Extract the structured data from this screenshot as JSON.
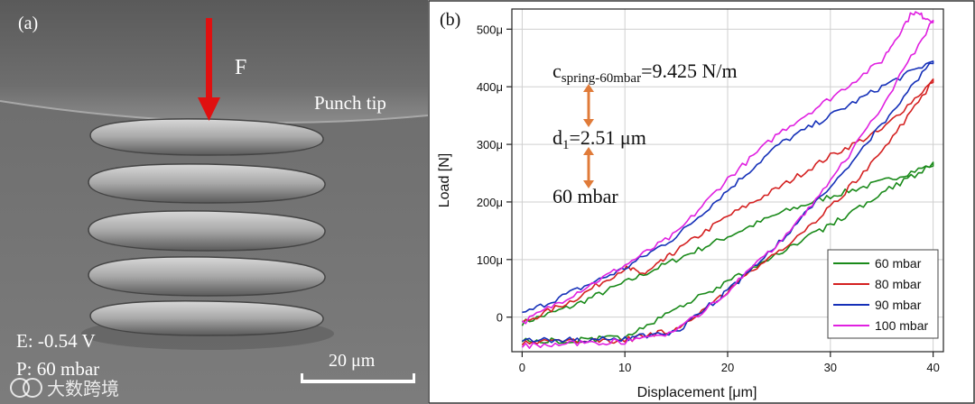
{
  "panel_a": {
    "label": "(a)",
    "force_label": "F",
    "tip_label": "Punch tip",
    "potential": "E: -0.54 V",
    "pressure": "P: 60 mbar",
    "scale_bar": "20 μm"
  },
  "panel_b": {
    "label": "(b)",
    "annotations": {
      "spring_main": "c",
      "spring_sub": "spring-60mbar",
      "spring_value": "=9.425 N/m",
      "d_main": "d",
      "d_sub": "1",
      "d_value": "=2.51 μm",
      "pressure": "60 mbar"
    },
    "arrow_color": "#e07b39"
  },
  "watermark": "大数跨境",
  "chart_data": {
    "type": "line",
    "title": "",
    "xlabel": "Displacement [μm]",
    "ylabel": "Load [N]",
    "xlim": [
      -1,
      41
    ],
    "ylim": [
      -60,
      535
    ],
    "xticks": [
      0,
      10,
      20,
      30,
      40
    ],
    "xtick_labels": [
      "0",
      "10",
      "20",
      "30",
      "40"
    ],
    "yticks": [
      0,
      100,
      200,
      300,
      400,
      500
    ],
    "ytick_labels": [
      "0",
      "100μ",
      "200μ",
      "300μ",
      "400μ",
      "500μ"
    ],
    "grid": true,
    "legend_position": "bottom-right",
    "series": [
      {
        "name": "60  mbar",
        "color": "#1a8a1a",
        "loading": [
          [
            0,
            -10
          ],
          [
            5,
            20
          ],
          [
            10,
            60
          ],
          [
            15,
            100
          ],
          [
            20,
            140
          ],
          [
            25,
            180
          ],
          [
            30,
            210
          ],
          [
            35,
            235
          ],
          [
            40,
            265
          ]
        ],
        "unloading": [
          [
            40,
            265
          ],
          [
            35,
            215
          ],
          [
            30,
            160
          ],
          [
            25,
            110
          ],
          [
            20,
            60
          ],
          [
            15,
            15
          ],
          [
            10,
            -35
          ],
          [
            5,
            -40
          ],
          [
            0,
            -42
          ]
        ]
      },
      {
        "name": "80  mbar",
        "color": "#d42020",
        "loading": [
          [
            0,
            -10
          ],
          [
            5,
            30
          ],
          [
            10,
            85
          ],
          [
            12,
            75
          ],
          [
            15,
            115
          ],
          [
            20,
            175
          ],
          [
            25,
            225
          ],
          [
            30,
            280
          ],
          [
            35,
            325
          ],
          [
            40,
            410
          ]
        ],
        "unloading": [
          [
            40,
            410
          ],
          [
            35,
            285
          ],
          [
            30,
            190
          ],
          [
            25,
            115
          ],
          [
            20,
            45
          ],
          [
            15,
            -20
          ],
          [
            10,
            -40
          ],
          [
            5,
            -42
          ],
          [
            0,
            -45
          ]
        ]
      },
      {
        "name": "90  mbar",
        "color": "#1530b8",
        "loading": [
          [
            0,
            5
          ],
          [
            5,
            45
          ],
          [
            10,
            85
          ],
          [
            15,
            140
          ],
          [
            20,
            220
          ],
          [
            25,
            300
          ],
          [
            30,
            350
          ],
          [
            35,
            400
          ],
          [
            40,
            445
          ]
        ],
        "unloading": [
          [
            40,
            445
          ],
          [
            35,
            335
          ],
          [
            30,
            225
          ],
          [
            25,
            130
          ],
          [
            20,
            45
          ],
          [
            15,
            -25
          ],
          [
            10,
            -38
          ],
          [
            5,
            -40
          ],
          [
            0,
            -38
          ]
        ]
      },
      {
        "name": "100 mbar",
        "color": "#e020e0",
        "loading": [
          [
            0,
            -10
          ],
          [
            5,
            40
          ],
          [
            10,
            90
          ],
          [
            15,
            145
          ],
          [
            20,
            240
          ],
          [
            25,
            320
          ],
          [
            30,
            380
          ],
          [
            35,
            445
          ],
          [
            38,
            530
          ],
          [
            40,
            515
          ]
        ],
        "unloading": [
          [
            40,
            515
          ],
          [
            35,
            365
          ],
          [
            30,
            235
          ],
          [
            25,
            130
          ],
          [
            20,
            45
          ],
          [
            15,
            -25
          ],
          [
            10,
            -42
          ],
          [
            5,
            -45
          ],
          [
            0,
            -50
          ]
        ]
      }
    ]
  }
}
